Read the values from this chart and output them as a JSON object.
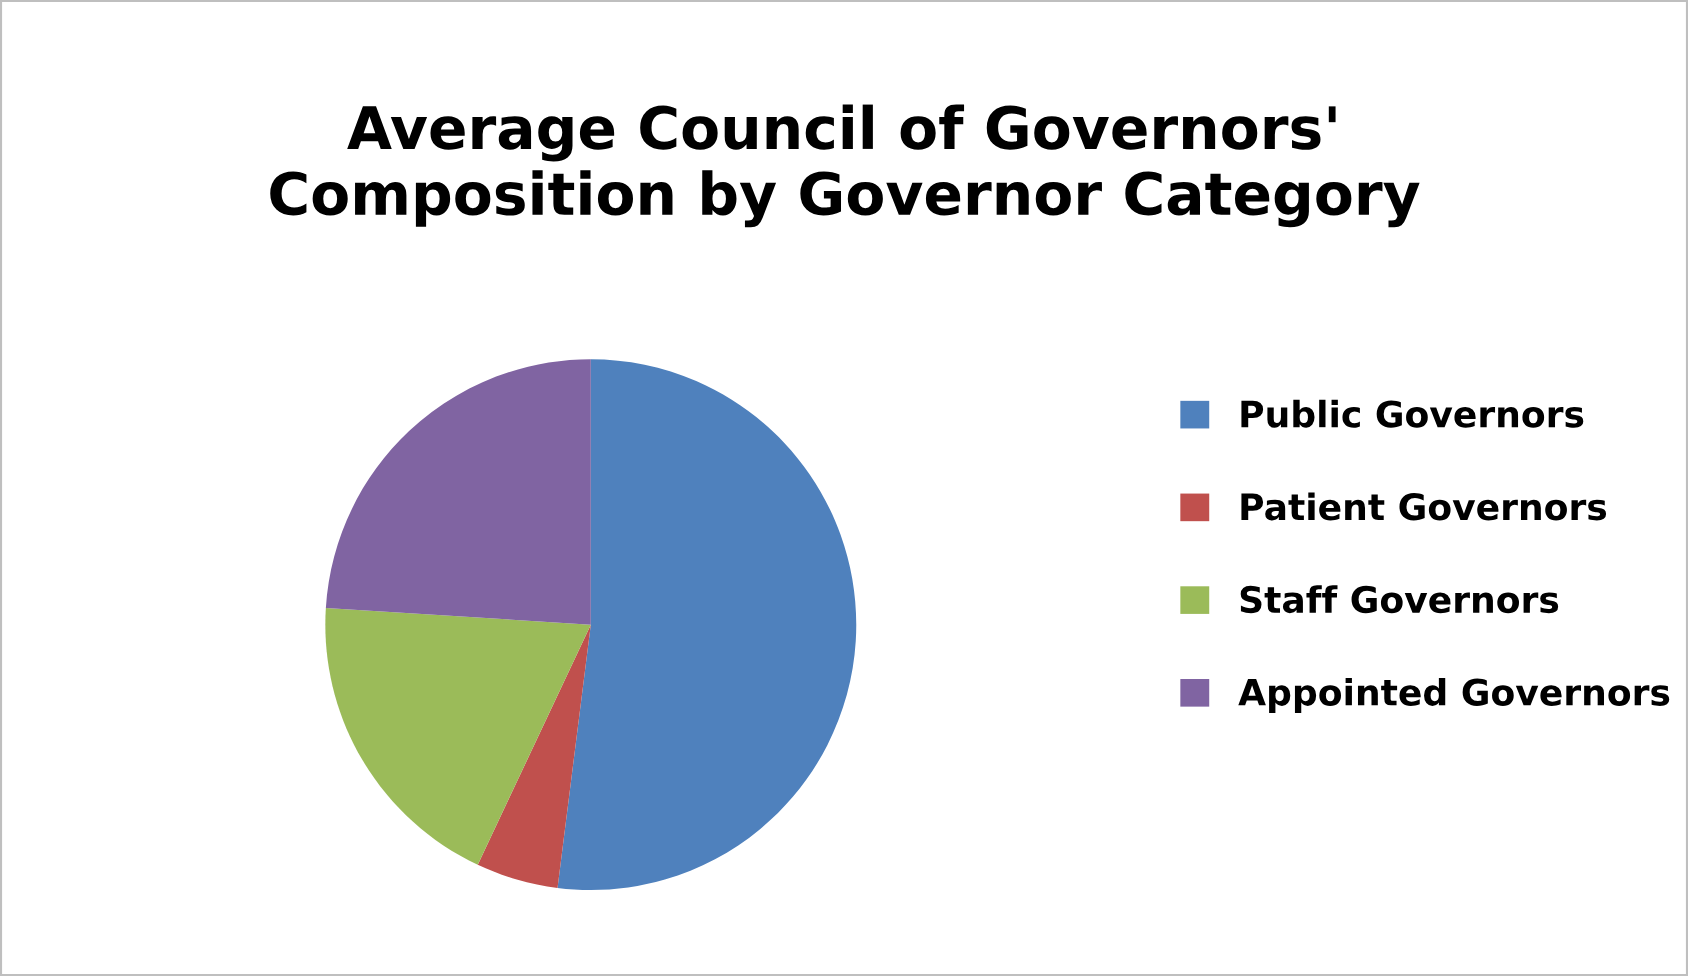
{
  "chart_data": {
    "type": "pie",
    "title": "Average Council of Governors'\nComposition by Governor Category",
    "categories": [
      "Public Governors",
      "Patient Governors",
      "Staff Governors",
      "Appointed Governors"
    ],
    "values": [
      52,
      5,
      19,
      24
    ],
    "colors": [
      "#4f81bd",
      "#c0504d",
      "#9bbb59",
      "#8064a2"
    ],
    "legend": "right"
  }
}
